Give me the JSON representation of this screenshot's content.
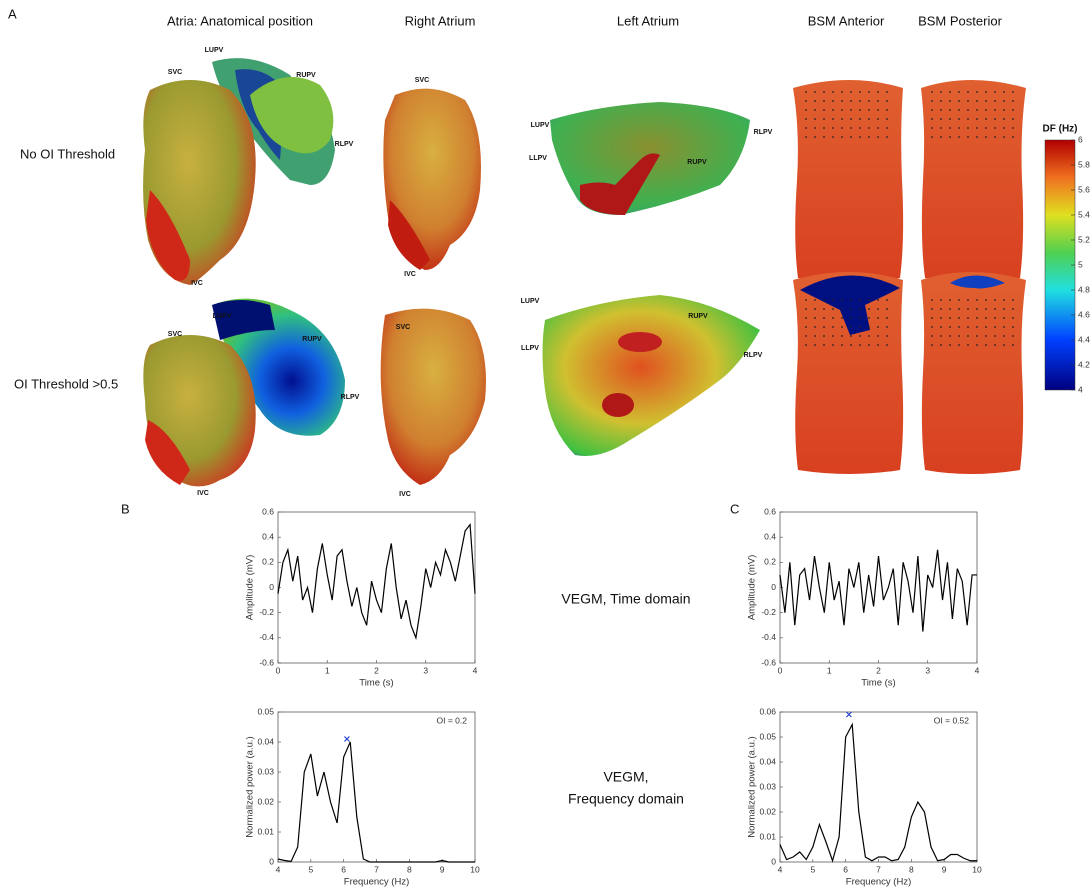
{
  "figure": {
    "panel_labels": [
      "A",
      "B",
      "C"
    ],
    "column_headers": [
      "Atria: Anatomical position",
      "Right Atrium",
      "Left Atrium",
      "BSM Anterior",
      "BSM Posterior"
    ],
    "row_labels": [
      "No OI Threshold",
      "OI Threshold >0.5"
    ],
    "anatomy_labels": [
      "LUPV",
      "SVC",
      "RUPV",
      "RLPV",
      "IVC",
      "SVC",
      "IVC",
      "LUPV",
      "LLPV",
      "RLPV",
      "RUPV",
      "LUPV",
      "SVC",
      "RUPV",
      "RLPV",
      "IVC",
      "SVC",
      "IVC",
      "LUPV",
      "LLPV",
      "RUPV",
      "RLPV"
    ],
    "colorbar": {
      "title": "DF (Hz)",
      "lim": [
        4,
        6
      ],
      "ticks": [
        4,
        4.2,
        4.4,
        4.6,
        4.8,
        5,
        5.2,
        5.4,
        5.6,
        5.8,
        6
      ]
    },
    "middle_texts": [
      "VEGM, Time domain",
      "VEGM,",
      "Frequency domain"
    ]
  },
  "chart_data": [
    {
      "type": "line",
      "xlabel": "Time (s)",
      "ylabel": "Amplitude (mV)",
      "color": "#000000",
      "xlim": [
        0,
        4
      ],
      "xticks": [
        0,
        1,
        2,
        3,
        4
      ],
      "ylim": [
        -0.6,
        0.6
      ],
      "yticks": [
        -0.6,
        -0.4,
        -0.2,
        0,
        0.2,
        0.4,
        0.6
      ],
      "x": [
        0,
        0.1,
        0.2,
        0.3,
        0.4,
        0.5,
        0.6,
        0.7,
        0.8,
        0.9,
        1,
        1.1,
        1.2,
        1.3,
        1.4,
        1.5,
        1.6,
        1.7,
        1.8,
        1.9,
        2,
        2.1,
        2.2,
        2.3,
        2.4,
        2.5,
        2.6,
        2.7,
        2.8,
        2.9,
        3,
        3.1,
        3.2,
        3.3,
        3.4,
        3.5,
        3.6,
        3.7,
        3.8,
        3.9,
        4
      ],
      "values": [
        -0.05,
        0.2,
        0.3,
        0.05,
        0.25,
        -0.1,
        0,
        -0.2,
        0.15,
        0.35,
        0.1,
        -0.1,
        0.25,
        0.3,
        0.05,
        -0.15,
        0,
        -0.2,
        -0.3,
        0.05,
        -0.1,
        -0.2,
        0.15,
        0.35,
        0,
        -0.25,
        -0.1,
        -0.3,
        -0.4,
        -0.15,
        0.15,
        0,
        0.2,
        0.1,
        0.3,
        0.2,
        0.05,
        0.25,
        0.45,
        0.5,
        -0.05
      ]
    },
    {
      "type": "line",
      "xlabel": "Frequency (Hz)",
      "ylabel": "Normalized power (a.u.)",
      "color": "#000000",
      "annotation": "OI = 0.2",
      "xlim": [
        4,
        10
      ],
      "xticks": [
        4,
        5,
        6,
        7,
        8,
        9,
        10
      ],
      "ylim": [
        0,
        0.05
      ],
      "yticks": [
        0,
        0.01,
        0.02,
        0.03,
        0.04,
        0.05
      ],
      "x": [
        4,
        4.2,
        4.4,
        4.6,
        4.8,
        5,
        5.2,
        5.4,
        5.6,
        5.8,
        6,
        6.2,
        6.4,
        6.6,
        6.8,
        7,
        7.2,
        7.4,
        7.6,
        7.8,
        8,
        8.2,
        8.4,
        8.6,
        8.8,
        9,
        9.2,
        9.4,
        9.6,
        9.8,
        10
      ],
      "values": [
        0.001,
        0.0005,
        0.0002,
        0.005,
        0.03,
        0.036,
        0.022,
        0.03,
        0.02,
        0.013,
        0.035,
        0.04,
        0.015,
        0.001,
        0,
        0,
        0,
        0,
        0,
        0,
        0,
        0,
        0,
        0,
        0,
        0.0005,
        0,
        0,
        0,
        0,
        0
      ],
      "marker": {
        "x": 6.1,
        "y": 0.041,
        "color": "#1f3fd0"
      }
    },
    {
      "type": "line",
      "xlabel": "Time (s)",
      "ylabel": "Amplitude (mV)",
      "color": "#000000",
      "xlim": [
        0,
        4
      ],
      "xticks": [
        0,
        1,
        2,
        3,
        4
      ],
      "ylim": [
        -0.6,
        0.6
      ],
      "yticks": [
        -0.6,
        -0.4,
        -0.2,
        0,
        0.2,
        0.4,
        0.6
      ],
      "x": [
        0,
        0.1,
        0.2,
        0.3,
        0.4,
        0.5,
        0.6,
        0.7,
        0.8,
        0.9,
        1,
        1.1,
        1.2,
        1.3,
        1.4,
        1.5,
        1.6,
        1.7,
        1.8,
        1.9,
        2,
        2.1,
        2.2,
        2.3,
        2.4,
        2.5,
        2.6,
        2.7,
        2.8,
        2.9,
        3,
        3.1,
        3.2,
        3.3,
        3.4,
        3.5,
        3.6,
        3.7,
        3.8,
        3.9,
        4
      ],
      "values": [
        0.1,
        -0.2,
        0.2,
        -0.3,
        0.1,
        0.15,
        -0.1,
        0.25,
        0,
        -0.2,
        0.2,
        -0.1,
        0.05,
        -0.3,
        0.15,
        0,
        0.2,
        -0.2,
        0.1,
        -0.15,
        0.25,
        -0.1,
        0,
        0.15,
        -0.3,
        0.2,
        0.05,
        -0.2,
        0.25,
        -0.35,
        0.1,
        0,
        0.3,
        -0.1,
        0.2,
        -0.25,
        0.15,
        0.05,
        -0.3,
        0.1,
        0.1
      ]
    },
    {
      "type": "line",
      "xlabel": "Frequency (Hz)",
      "ylabel": "Normalized power (a.u.)",
      "color": "#000000",
      "annotation": "OI = 0.52",
      "xlim": [
        4,
        10
      ],
      "xticks": [
        4,
        5,
        6,
        7,
        8,
        9,
        10
      ],
      "ylim": [
        0,
        0.06
      ],
      "yticks": [
        0,
        0.01,
        0.02,
        0.03,
        0.04,
        0.05,
        0.06
      ],
      "x": [
        4,
        4.2,
        4.4,
        4.6,
        4.8,
        5,
        5.2,
        5.4,
        5.6,
        5.8,
        6,
        6.2,
        6.4,
        6.6,
        6.8,
        7,
        7.2,
        7.4,
        7.6,
        7.8,
        8,
        8.2,
        8.4,
        8.6,
        8.8,
        9,
        9.2,
        9.4,
        9.6,
        9.8,
        10
      ],
      "values": [
        0.007,
        0.001,
        0.002,
        0.004,
        0.001,
        0.006,
        0.015,
        0.008,
        0.0005,
        0.01,
        0.05,
        0.055,
        0.02,
        0.002,
        0.0005,
        0.002,
        0.002,
        0.0005,
        0.001,
        0.006,
        0.018,
        0.024,
        0.02,
        0.006,
        0.0005,
        0.001,
        0.003,
        0.003,
        0.0015,
        0.0005,
        0.0005
      ],
      "marker": {
        "x": 6.1,
        "y": 0.059,
        "color": "#1f3fd0"
      }
    }
  ]
}
